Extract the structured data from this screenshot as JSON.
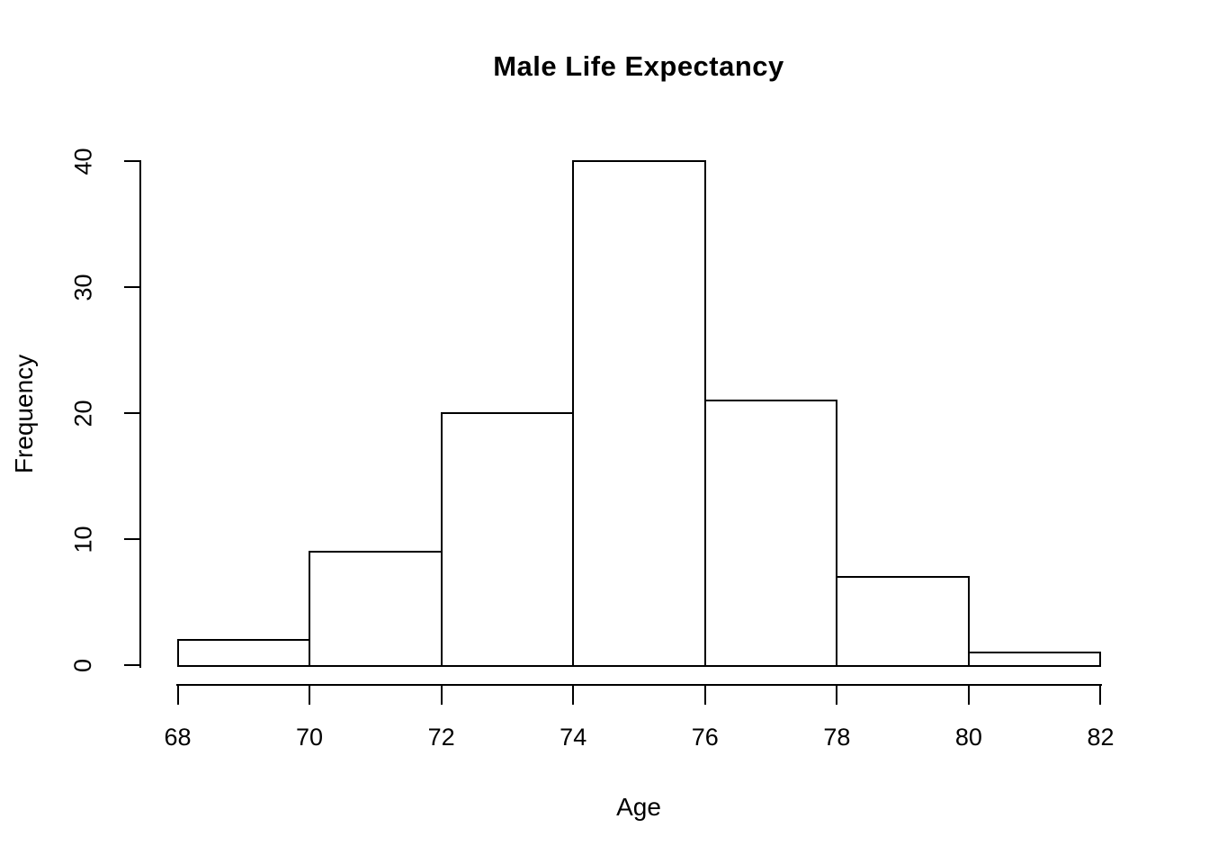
{
  "chart_data": {
    "type": "bar",
    "subtype": "histogram",
    "title": "Male Life Expectancy",
    "xlabel": "Age",
    "ylabel": "Frequency",
    "bin_edges": [
      68,
      70,
      72,
      74,
      76,
      78,
      80,
      82
    ],
    "categories": [
      "68-70",
      "70-72",
      "72-74",
      "74-76",
      "76-78",
      "78-80",
      "80-82"
    ],
    "values": [
      2,
      9,
      20,
      40,
      21,
      7,
      1
    ],
    "xlim": [
      68,
      82
    ],
    "ylim": [
      0,
      40
    ],
    "xticks": [
      68,
      70,
      72,
      74,
      76,
      78,
      80,
      82
    ],
    "yticks": [
      0,
      10,
      20,
      30,
      40
    ],
    "grid": false,
    "legend": false,
    "colors": {
      "background": "#ffffff",
      "bar_fill": "#ffffff",
      "line": "#000000",
      "text": "#000000"
    }
  }
}
